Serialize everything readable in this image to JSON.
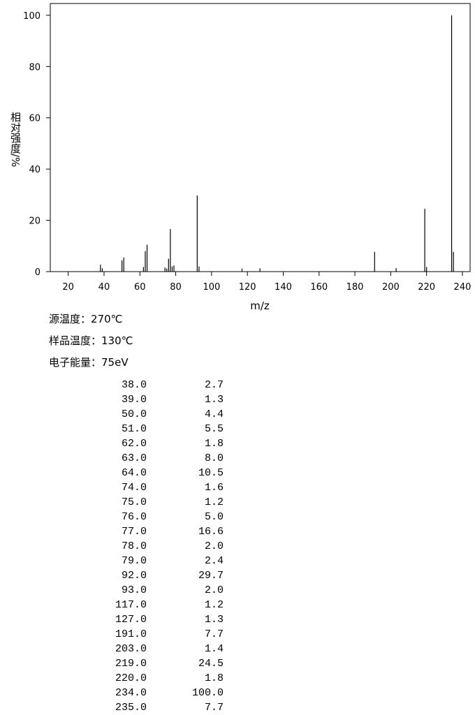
{
  "chart_data": {
    "type": "bar",
    "x_label": "m/z",
    "y_label": "相对强度/%",
    "x": [
      38,
      39,
      50,
      51,
      62,
      63,
      64,
      74,
      75,
      76,
      77,
      78,
      79,
      92,
      93,
      117,
      127,
      191,
      203,
      219,
      220,
      234,
      235
    ],
    "x_labels": [
      "38.0",
      "39.0",
      "50.0",
      "51.0",
      "62.0",
      "63.0",
      "64.0",
      "74.0",
      "75.0",
      "76.0",
      "77.0",
      "78.0",
      "79.0",
      "92.0",
      "93.0",
      "117.0",
      "127.0",
      "191.0",
      "203.0",
      "219.0",
      "220.0",
      "234.0",
      "235.0"
    ],
    "values": [
      2.7,
      1.3,
      4.4,
      5.5,
      1.8,
      8.0,
      10.5,
      1.6,
      1.2,
      5.0,
      16.6,
      2.0,
      2.4,
      29.7,
      2.0,
      1.2,
      1.3,
      7.7,
      1.4,
      24.5,
      1.8,
      100.0,
      7.7
    ],
    "value_labels": [
      "2.7",
      "1.3",
      "4.4",
      "5.5",
      "1.8",
      "8.0",
      "10.5",
      "1.6",
      "1.2",
      "5.0",
      "16.6",
      "2.0",
      "2.4",
      "29.7",
      "2.0",
      "1.2",
      "1.3",
      "7.7",
      "1.4",
      "24.5",
      "1.8",
      "100.0",
      "7.7"
    ],
    "color": "#000000",
    "xlim": [
      10,
      244.3
    ],
    "ylim": [
      0,
      104.6
    ],
    "xticks": [
      20,
      40,
      60,
      80,
      100,
      120,
      140,
      160,
      180,
      200,
      220,
      240
    ],
    "yticks": [
      0,
      20,
      40,
      60,
      80,
      100
    ]
  },
  "info": [
    "源温度：270℃",
    "样品温度：130℃",
    "电子能量：75eV"
  ]
}
